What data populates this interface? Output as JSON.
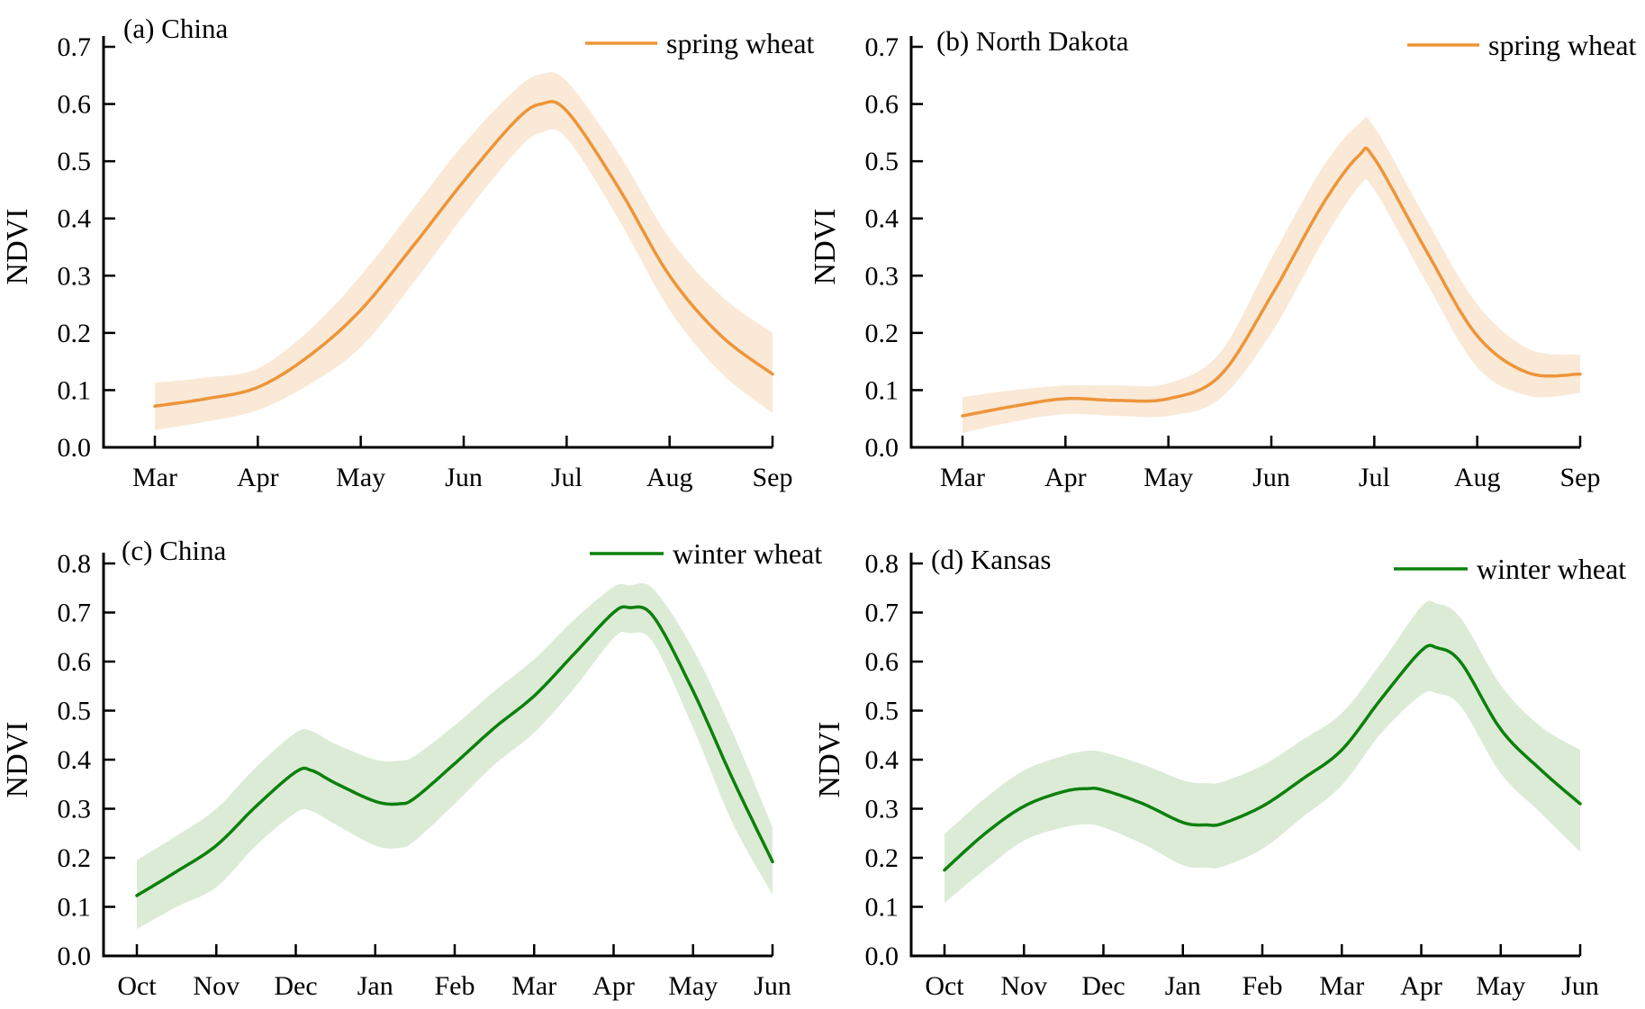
{
  "figure": {
    "background": "#ffffff",
    "text_color": "#000000",
    "axis_color": "#000000"
  },
  "chart_data": [
    {
      "id": "a",
      "type": "line",
      "title": "(a) China",
      "legend": "winter/spring legend entry",
      "legend_label": "spring wheat",
      "ylabel": "NDVI",
      "ylim": [
        0.0,
        0.7
      ],
      "yticks": [
        "0.0",
        "0.1",
        "0.2",
        "0.3",
        "0.4",
        "0.5",
        "0.6",
        "0.7"
      ],
      "x_labels": [
        "Mar",
        "Apr",
        "May",
        "Jun",
        "Jul",
        "Aug",
        "Sep"
      ],
      "line_color": "#ED9539",
      "band_color": "#FAE9D7",
      "x": [
        0,
        0.5,
        1,
        1.5,
        2,
        2.5,
        3,
        3.5,
        3.75,
        4,
        4.5,
        5,
        5.5,
        6
      ],
      "mean": [
        0.072,
        0.085,
        0.105,
        0.16,
        0.24,
        0.35,
        0.465,
        0.57,
        0.6,
        0.588,
        0.455,
        0.3,
        0.195,
        0.128
      ],
      "lower": [
        0.03,
        0.045,
        0.065,
        0.11,
        0.175,
        0.285,
        0.405,
        0.515,
        0.55,
        0.54,
        0.4,
        0.24,
        0.13,
        0.06
      ],
      "upper": [
        0.113,
        0.122,
        0.138,
        0.205,
        0.3,
        0.415,
        0.53,
        0.625,
        0.652,
        0.64,
        0.515,
        0.365,
        0.265,
        0.2
      ],
      "grid": false,
      "legend_position": "top-right"
    },
    {
      "id": "b",
      "type": "line",
      "title": "(b) North Dakota",
      "legend_label": "spring wheat",
      "ylabel": "NDVI",
      "ylim": [
        0.0,
        0.7
      ],
      "yticks": [
        "0.0",
        "0.1",
        "0.2",
        "0.3",
        "0.4",
        "0.5",
        "0.6",
        "0.7"
      ],
      "x_labels": [
        "Mar",
        "Apr",
        "May",
        "Jun",
        "Jul",
        "Aug",
        "Sep"
      ],
      "line_color": "#ED9539",
      "band_color": "#FAE9D7",
      "x": [
        0,
        0.5,
        1,
        1.5,
        2,
        2.5,
        3,
        3.5,
        3.85,
        4,
        4.5,
        5,
        5.5,
        6
      ],
      "mean": [
        0.055,
        0.072,
        0.085,
        0.082,
        0.085,
        0.125,
        0.265,
        0.425,
        0.51,
        0.505,
        0.345,
        0.195,
        0.13,
        0.128
      ],
      "lower": [
        0.025,
        0.045,
        0.058,
        0.055,
        0.055,
        0.085,
        0.2,
        0.36,
        0.455,
        0.45,
        0.29,
        0.14,
        0.09,
        0.095
      ],
      "upper": [
        0.088,
        0.1,
        0.108,
        0.108,
        0.112,
        0.165,
        0.33,
        0.49,
        0.565,
        0.56,
        0.4,
        0.25,
        0.172,
        0.162
      ],
      "grid": false,
      "legend_position": "top-right"
    },
    {
      "id": "c",
      "type": "line",
      "title": "(c) China",
      "legend_label": "winter wheat",
      "ylabel": "NDVI",
      "ylim": [
        0.0,
        0.8
      ],
      "yticks": [
        "0.0",
        "0.1",
        "0.2",
        "0.3",
        "0.4",
        "0.5",
        "0.6",
        "0.7",
        "0.8"
      ],
      "x_labels": [
        "Oct",
        "Nov",
        "Dec",
        "Jan",
        "Feb",
        "Mar",
        "Apr",
        "May",
        "Jun"
      ],
      "line_color": "#0C800C",
      "band_color": "#DCEBD6",
      "x": [
        0,
        0.5,
        1,
        1.5,
        2,
        2.2,
        2.5,
        3,
        3.3,
        3.5,
        4,
        4.5,
        5,
        5.5,
        6,
        6.2,
        6.5,
        7,
        7.5,
        8
      ],
      "mean": [
        0.123,
        0.172,
        0.225,
        0.305,
        0.375,
        0.378,
        0.352,
        0.315,
        0.31,
        0.322,
        0.392,
        0.465,
        0.53,
        0.615,
        0.7,
        0.71,
        0.692,
        0.54,
        0.36,
        0.192
      ],
      "lower": [
        0.055,
        0.1,
        0.14,
        0.225,
        0.292,
        0.295,
        0.268,
        0.225,
        0.22,
        0.235,
        0.31,
        0.39,
        0.455,
        0.545,
        0.648,
        0.658,
        0.638,
        0.465,
        0.27,
        0.125
      ],
      "upper": [
        0.195,
        0.245,
        0.3,
        0.385,
        0.455,
        0.458,
        0.432,
        0.4,
        0.398,
        0.408,
        0.47,
        0.54,
        0.605,
        0.685,
        0.752,
        0.755,
        0.748,
        0.625,
        0.455,
        0.262
      ],
      "grid": false,
      "legend_position": "top-right"
    },
    {
      "id": "d",
      "type": "line",
      "title": "(d) Kansas",
      "legend_label": "winter wheat",
      "ylabel": "NDVI",
      "ylim": [
        0.0,
        0.8
      ],
      "yticks": [
        "0.0",
        "0.1",
        "0.2",
        "0.3",
        "0.4",
        "0.5",
        "0.6",
        "0.7",
        "0.8"
      ],
      "x_labels": [
        "Oct",
        "Nov",
        "Dec",
        "Jan",
        "Feb",
        "Mar",
        "Apr",
        "May",
        "Jun"
      ],
      "line_color": "#0C800C",
      "band_color": "#DCEBD6",
      "x": [
        0,
        0.5,
        1,
        1.5,
        1.8,
        2,
        2.5,
        3,
        3.3,
        3.5,
        4,
        4.5,
        5,
        5.5,
        6,
        6.2,
        6.5,
        7,
        7.5,
        8
      ],
      "mean": [
        0.175,
        0.248,
        0.305,
        0.335,
        0.341,
        0.338,
        0.31,
        0.272,
        0.267,
        0.27,
        0.305,
        0.36,
        0.42,
        0.525,
        0.622,
        0.628,
        0.598,
        0.462,
        0.38,
        0.31
      ],
      "lower": [
        0.108,
        0.175,
        0.235,
        0.262,
        0.268,
        0.262,
        0.228,
        0.185,
        0.18,
        0.182,
        0.218,
        0.282,
        0.348,
        0.455,
        0.532,
        0.535,
        0.508,
        0.372,
        0.292,
        0.212
      ],
      "upper": [
        0.248,
        0.32,
        0.378,
        0.408,
        0.418,
        0.415,
        0.39,
        0.358,
        0.352,
        0.355,
        0.388,
        0.44,
        0.495,
        0.598,
        0.712,
        0.718,
        0.688,
        0.552,
        0.468,
        0.42
      ],
      "grid": false,
      "legend_position": "top-right"
    }
  ]
}
